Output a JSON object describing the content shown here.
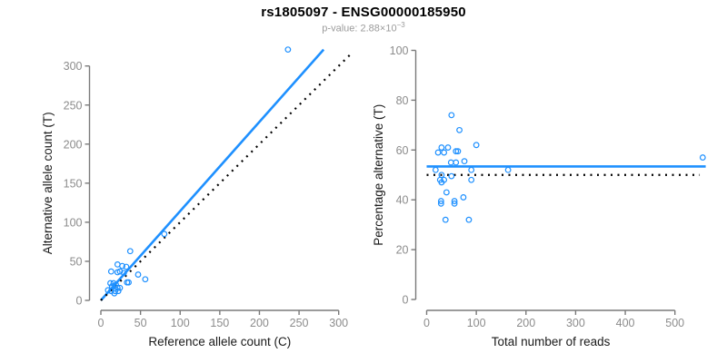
{
  "header": {
    "title": "rs1805097 - ENSG00000185950",
    "subtitle_prefix": "p-value: 2.88×10",
    "subtitle_exponent": "−3"
  },
  "colors": {
    "accent_blue": "#1E90FF",
    "dotted_line": "#000000",
    "axis_line": "#7a7a7a",
    "tick_label": "#8c8c8c",
    "axis_title": "#1a1a1a",
    "background": "#ffffff"
  },
  "chart_data": [
    {
      "type": "scatter",
      "name": "allele-count-scatter",
      "xlabel": "Reference allele count (C)",
      "ylabel": "Alternative allele count (T)",
      "xlim": [
        0,
        300
      ],
      "ylim": [
        0,
        300
      ],
      "xticks": [
        0,
        50,
        100,
        150,
        200,
        250,
        300
      ],
      "yticks": [
        0,
        50,
        100,
        150,
        200,
        250,
        300
      ],
      "grid": false,
      "points": [
        [
          9,
          13
        ],
        [
          12,
          22
        ],
        [
          13,
          12
        ],
        [
          13,
          37
        ],
        [
          14,
          18
        ],
        [
          16,
          22
        ],
        [
          17,
          9
        ],
        [
          18,
          12
        ],
        [
          19,
          20
        ],
        [
          21,
          16
        ],
        [
          21,
          36
        ],
        [
          21,
          46
        ],
        [
          22,
          12
        ],
        [
          24,
          16
        ],
        [
          24,
          37
        ],
        [
          27,
          44
        ],
        [
          29,
          35
        ],
        [
          32,
          43
        ],
        [
          33,
          23
        ],
        [
          35,
          23
        ],
        [
          37,
          63
        ],
        [
          47,
          33
        ],
        [
          56,
          27
        ],
        [
          80,
          85
        ],
        [
          236,
          321
        ]
      ],
      "lines": [
        {
          "name": "regression-line",
          "style": "solid",
          "color": "accent_blue",
          "from": [
            0,
            0
          ],
          "to": [
            281,
            321
          ]
        },
        {
          "name": "identity-line",
          "style": "dotted",
          "color": "dotted_line",
          "from": [
            0,
            0
          ],
          "to": [
            318,
            318
          ]
        }
      ]
    },
    {
      "type": "scatter",
      "name": "percentage-scatter",
      "xlabel": "Total number of reads",
      "ylabel": "Percentage alternative (T)",
      "xlim": [
        0,
        500
      ],
      "ylim": [
        0,
        100
      ],
      "xticks": [
        0,
        100,
        200,
        300,
        400,
        500
      ],
      "yticks": [
        0,
        20,
        40,
        60,
        80,
        100
      ],
      "grid": false,
      "points": [
        [
          18,
          52
        ],
        [
          23,
          59
        ],
        [
          27,
          48
        ],
        [
          29,
          39.5
        ],
        [
          29,
          38.5
        ],
        [
          30,
          47
        ],
        [
          30,
          50
        ],
        [
          30,
          61
        ],
        [
          35,
          48
        ],
        [
          35,
          59
        ],
        [
          38,
          32
        ],
        [
          40,
          43
        ],
        [
          43,
          61
        ],
        [
          49,
          55
        ],
        [
          50,
          49.5
        ],
        [
          50,
          74
        ],
        [
          56,
          39.5
        ],
        [
          56,
          38.5
        ],
        [
          59,
          55
        ],
        [
          59,
          59.5
        ],
        [
          63,
          59.5
        ],
        [
          66,
          68
        ],
        [
          74,
          41
        ],
        [
          76,
          55.5
        ],
        [
          85,
          32
        ],
        [
          90,
          48
        ],
        [
          90,
          52
        ],
        [
          100,
          62
        ],
        [
          164,
          52
        ],
        [
          556,
          57
        ]
      ],
      "lines": [
        {
          "name": "mean-percentage-line",
          "style": "solid",
          "color": "accent_blue",
          "from": [
            0,
            53.4
          ],
          "to": [
            562,
            53.4
          ]
        },
        {
          "name": "expected-50-line",
          "style": "dotted",
          "color": "dotted_line",
          "from": [
            0,
            50
          ],
          "to": [
            550,
            50
          ]
        }
      ]
    }
  ]
}
